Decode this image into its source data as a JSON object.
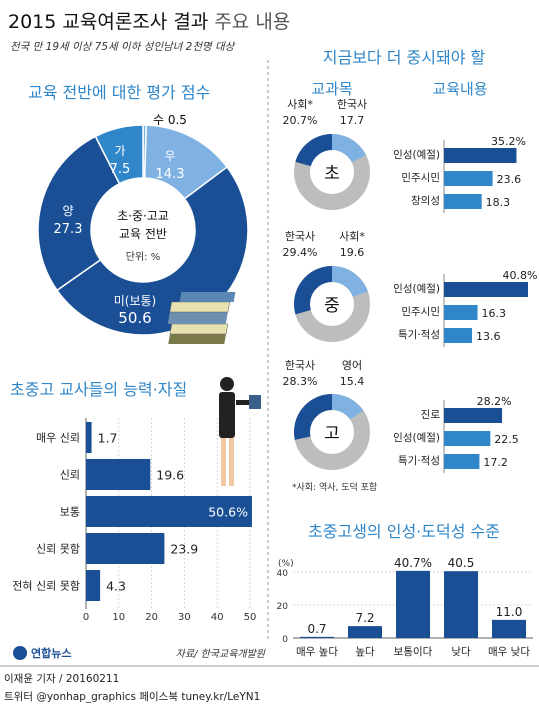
{
  "header": {
    "title_main": "2015 교육여론조사 결과",
    "title_tail": "주요 내용",
    "subtitle": "전국 만 19세 이상 75세 이하 성인남녀 2천명 대상"
  },
  "footer": {
    "logo_text": "연합뉴스",
    "source": "자료/ 한국교육개발원",
    "credit": "이재윤 기자 / 20160211",
    "sns": "트위터 @yonhap_graphics  페이스북 tuney.kr/LeYN1"
  },
  "colors": {
    "dark_blue": "#1a4f96",
    "mid_blue": "#2f86c9",
    "light_blue": "#7fb1e3",
    "gray": "#bdbdbd"
  },
  "chart_data": [
    {
      "id": "overall-score",
      "type": "pie",
      "title": "교육 전반에 대한 평가 점수",
      "center_label": [
        "초·중·고교",
        "교육 전반"
      ],
      "unit_label": "단위: %",
      "slices": [
        {
          "name": "수",
          "value": 0.5
        },
        {
          "name": "우",
          "value": 14.3
        },
        {
          "name": "미(보통)",
          "value": 50.6
        },
        {
          "name": "양",
          "value": 27.3
        },
        {
          "name": "가",
          "value": 7.5
        }
      ]
    },
    {
      "id": "teacher-ability",
      "type": "bar",
      "orientation": "horizontal",
      "title": "초중고 교사들의 능력·자질",
      "categories": [
        "매우 신뢰",
        "신뢰",
        "보통",
        "신뢰 못함",
        "전혀 신뢰 못함"
      ],
      "values": [
        1.7,
        19.6,
        50.6,
        23.9,
        4.3
      ],
      "value_labels": [
        "1.7",
        "19.6",
        "50.6%",
        "23.9",
        "4.3"
      ],
      "xticks": [
        "0",
        "10",
        "20",
        "30",
        "40",
        "50"
      ],
      "xlim": [
        0,
        50
      ]
    },
    {
      "id": "subjects",
      "type": "pie",
      "title": "지금보다 더 중시돼야 할",
      "col_subject": "교과목",
      "col_content": "교육내용",
      "footnote": "*사회: 역사, 도덕 포함",
      "groups": [
        {
          "level": "초",
          "subjects": [
            {
              "name": "사회*",
              "value": 20.7,
              "label": "20.7%"
            },
            {
              "name": "한국사",
              "value": 17.7,
              "label": "17.7"
            }
          ],
          "contents": [
            {
              "name": "인성(예절)",
              "value": 35.2,
              "label": "35.2%"
            },
            {
              "name": "민주시민",
              "value": 23.6,
              "label": "23.6"
            },
            {
              "name": "창의성",
              "value": 18.3,
              "label": "18.3"
            }
          ]
        },
        {
          "level": "중",
          "subjects": [
            {
              "name": "한국사",
              "value": 29.4,
              "label": "29.4%"
            },
            {
              "name": "사회*",
              "value": 19.6,
              "label": "19.6"
            }
          ],
          "contents": [
            {
              "name": "인성(예절)",
              "value": 40.8,
              "label": "40.8%"
            },
            {
              "name": "민주시민",
              "value": 16.3,
              "label": "16.3"
            },
            {
              "name": "특기·적성",
              "value": 13.6,
              "label": "13.6"
            }
          ]
        },
        {
          "level": "고",
          "subjects": [
            {
              "name": "한국사",
              "value": 28.3,
              "label": "28.3%"
            },
            {
              "name": "영어",
              "value": 15.4,
              "label": "15.4"
            }
          ],
          "contents": [
            {
              "name": "진로",
              "value": 28.2,
              "label": "28.2%"
            },
            {
              "name": "인성(예절)",
              "value": 22.5,
              "label": "22.5"
            },
            {
              "name": "특기·적성",
              "value": 17.2,
              "label": "17.2"
            }
          ]
        }
      ]
    },
    {
      "id": "character-level",
      "type": "bar",
      "title": "초중고생의 인성·도덕성 수준",
      "ylabel": "(%)",
      "categories": [
        "매우 높다",
        "높다",
        "보통이다",
        "낮다",
        "매우 낮다"
      ],
      "values": [
        0.7,
        7.2,
        40.7,
        40.5,
        11.0
      ],
      "value_labels": [
        "0.7",
        "7.2",
        "40.7%",
        "40.5",
        "11.0"
      ],
      "yticks": [
        "0",
        "20",
        "40"
      ],
      "ylim": [
        0,
        40
      ]
    }
  ]
}
